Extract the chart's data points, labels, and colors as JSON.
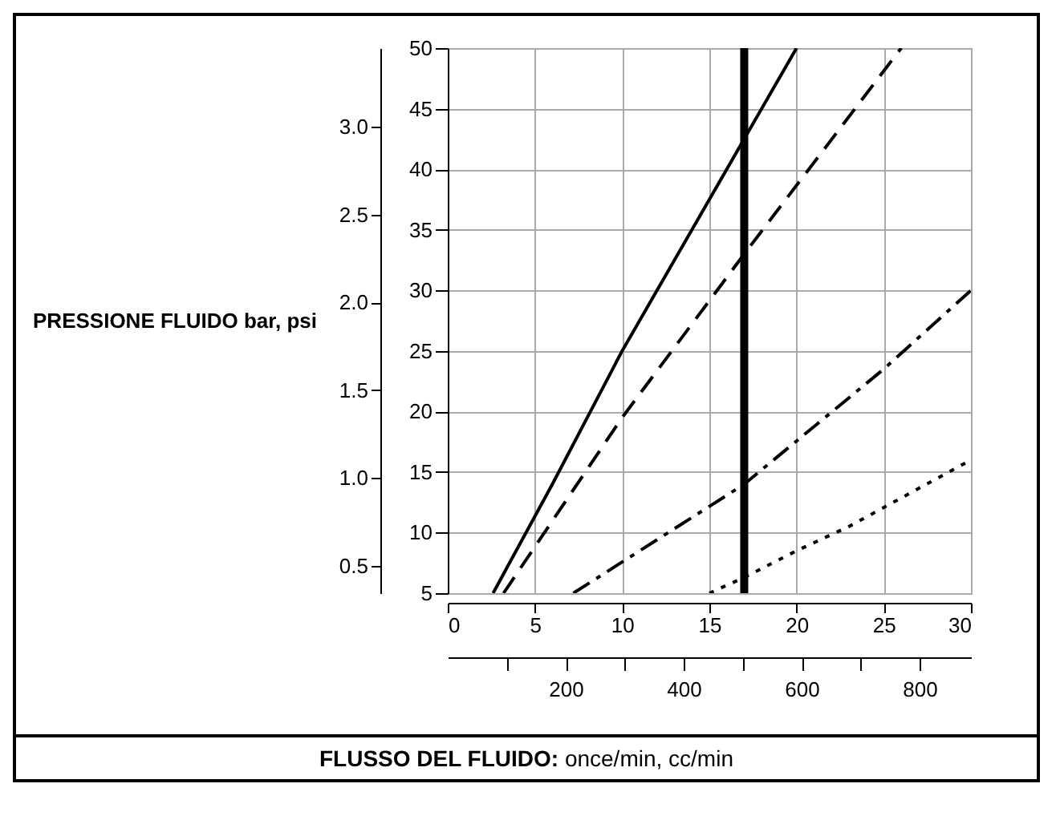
{
  "chart_data": {
    "type": "line",
    "xlabel": "FLUSSO DEL FLUIDO: once/min, cc/min",
    "ylabel": "PRESSIONE FLUIDO bar, psi",
    "xlim": [
      0,
      30
    ],
    "xticks": [
      0,
      5,
      10,
      15,
      20,
      25,
      30
    ],
    "x2lim": [
      0,
      887
    ],
    "x2ticks": [
      {
        "value": 100,
        "label": null
      },
      {
        "value": 200,
        "label": "200"
      },
      {
        "value": 300,
        "label": null
      },
      {
        "value": 400,
        "label": "400"
      },
      {
        "value": 500,
        "label": null
      },
      {
        "value": 600,
        "label": "600"
      },
      {
        "value": 700,
        "label": null
      },
      {
        "value": 800,
        "label": "800"
      }
    ],
    "ylim": [
      0.345,
      3.448
    ],
    "yticks": [
      {
        "value": 0.5,
        "label": "0.5"
      },
      {
        "value": 1,
        "label": "1.0"
      },
      {
        "value": 1.5,
        "label": "1.5"
      },
      {
        "value": 2,
        "label": "2.0"
      },
      {
        "value": 2.5,
        "label": "2.5"
      },
      {
        "value": 3,
        "label": "3.0"
      }
    ],
    "y2lim": [
      5,
      50
    ],
    "y2ticks": [
      5,
      10,
      15,
      20,
      25,
      30,
      35,
      40,
      45,
      50
    ],
    "grid": true,
    "series": [
      {
        "axis": "y2",
        "color": "#000000",
        "line_style": "solid",
        "x": [
          2.6,
          6,
          10,
          17,
          20
        ],
        "values": [
          5,
          14,
          25,
          42.5,
          50
        ]
      },
      {
        "axis": "y2",
        "color": "#000000",
        "line_style": "dashed",
        "x": [
          3.2,
          10,
          17,
          26
        ],
        "values": [
          5,
          19.5,
          33,
          50
        ]
      },
      {
        "axis": "y2",
        "color": "#000000",
        "line_style": "dashdot",
        "x": [
          7.2,
          17,
          25,
          30
        ],
        "values": [
          5,
          14,
          23.5,
          30
        ]
      },
      {
        "axis": "y2",
        "color": "#000000",
        "line_style": "dotted",
        "x": [
          15,
          17,
          20,
          23,
          30
        ],
        "values": [
          5,
          6.3,
          8.5,
          10.5,
          16
        ]
      }
    ],
    "ref_lines": [
      {
        "axis": "x",
        "value": 17,
        "color": "#000000",
        "line_style": "solid"
      }
    ]
  }
}
